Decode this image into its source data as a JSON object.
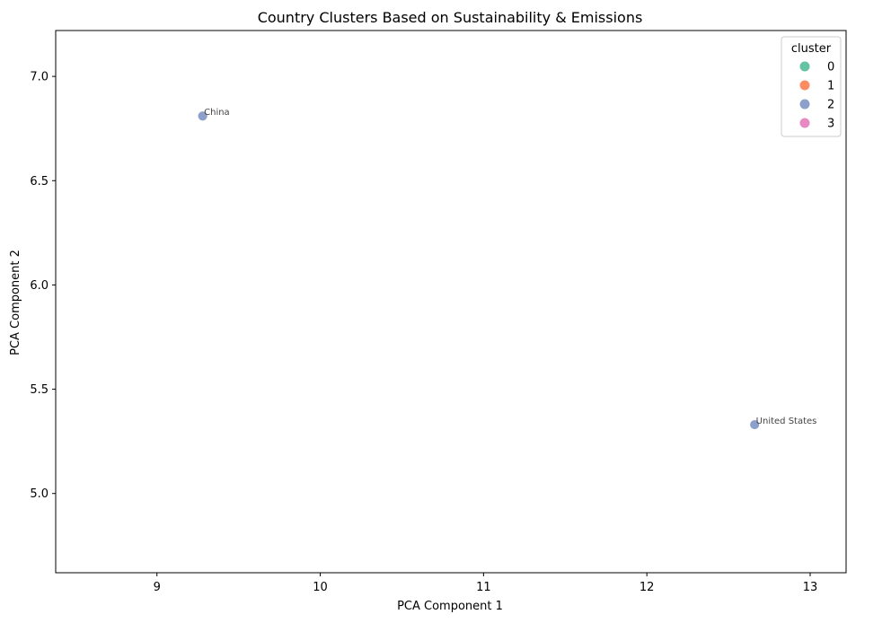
{
  "chart_data": {
    "type": "scatter",
    "title": "Country Clusters Based on Sustainability & Emissions",
    "xlabel": "PCA Component 1",
    "ylabel": "PCA Component 2",
    "xlim": [
      8.38,
      13.22
    ],
    "ylim": [
      4.62,
      7.22
    ],
    "xticks": [
      9,
      10,
      11,
      12,
      13
    ],
    "yticks": [
      5.0,
      5.5,
      6.0,
      6.5,
      7.0
    ],
    "xtick_labels": [
      "9",
      "10",
      "11",
      "12",
      "13"
    ],
    "ytick_labels": [
      "5.0",
      "5.5",
      "6.0",
      "6.5",
      "7.0"
    ],
    "grid": false,
    "legend": {
      "title": "cluster",
      "placement": "top-right",
      "entries": [
        {
          "label": "0",
          "color": "#66c2a5"
        },
        {
          "label": "1",
          "color": "#fc8d62"
        },
        {
          "label": "2",
          "color": "#8da0cb"
        },
        {
          "label": "3",
          "color": "#e78ac3"
        }
      ]
    },
    "points": [
      {
        "label": "China",
        "x": 9.28,
        "y": 6.81,
        "cluster": 2,
        "color": "#8da0cb"
      },
      {
        "label": "United States",
        "x": 12.66,
        "y": 5.33,
        "cluster": 2,
        "color": "#8da0cb"
      }
    ]
  }
}
